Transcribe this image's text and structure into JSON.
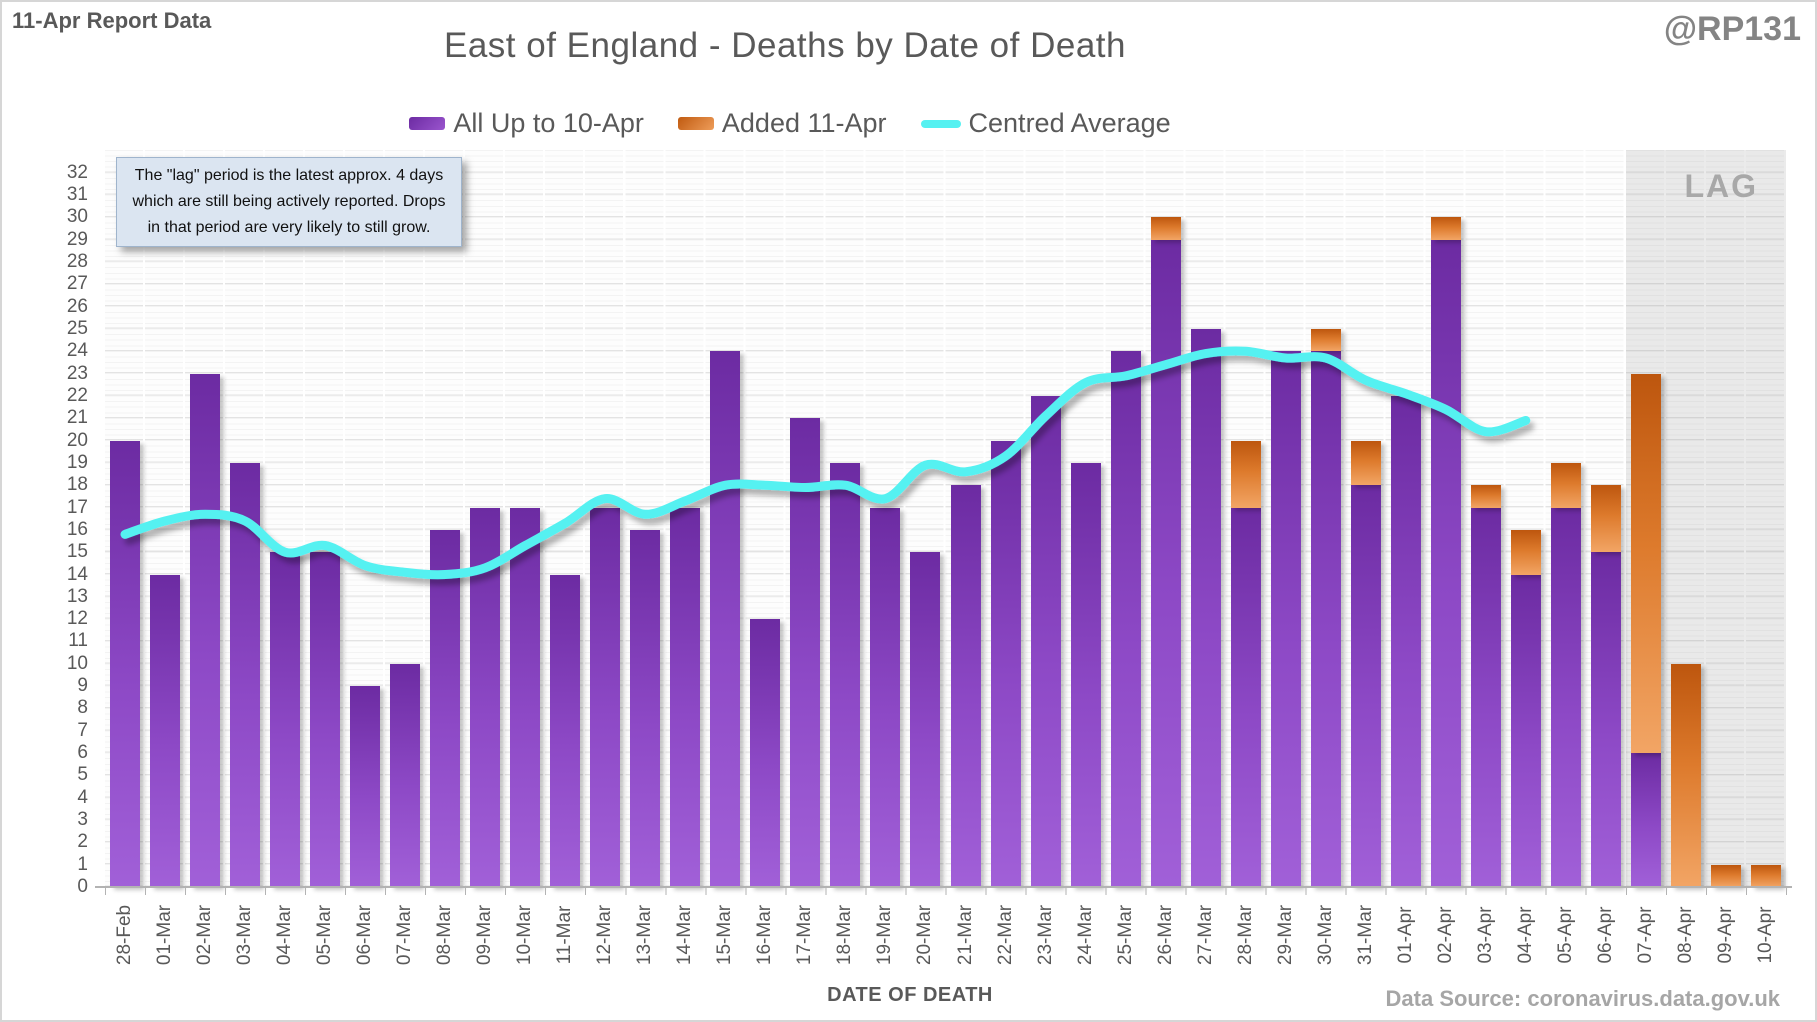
{
  "header": {
    "report_label": "11-Apr Report Data",
    "handle": "@RP131",
    "title": "East of England - Deaths by Date of Death"
  },
  "legend": [
    {
      "label": "All Up to 10-Apr",
      "swatch": "purple-bar",
      "color": "#7030a0"
    },
    {
      "label": "Added 11-Apr",
      "swatch": "orange-bar",
      "color": "#ed7d31"
    },
    {
      "label": "Centred Average",
      "swatch": "cyan-line",
      "color": "#55f1f1"
    }
  ],
  "annotation": {
    "lines": [
      "The \"lag\" period is the latest approx. 4 days",
      "which are still being actively reported. Drops",
      "in that period are very likely to still grow."
    ]
  },
  "lag_label": "LAG",
  "xaxis_title": "DATE OF DEATH",
  "source": "Data Source: coronavirus.data.gov.uk",
  "chart_data": {
    "type": "bar",
    "stacked": true,
    "grid": true,
    "legend_position": "top",
    "ylim": [
      0,
      32
    ],
    "yticks": [
      0,
      1,
      2,
      3,
      4,
      5,
      6,
      7,
      8,
      9,
      10,
      11,
      12,
      13,
      14,
      15,
      16,
      17,
      18,
      19,
      20,
      21,
      22,
      23,
      24,
      25,
      26,
      27,
      28,
      29,
      30,
      31,
      32
    ],
    "categories": [
      "28-Feb",
      "01-Mar",
      "02-Mar",
      "03-Mar",
      "04-Mar",
      "05-Mar",
      "06-Mar",
      "07-Mar",
      "08-Mar",
      "09-Mar",
      "10-Mar",
      "11-Mar",
      "12-Mar",
      "13-Mar",
      "14-Mar",
      "15-Mar",
      "16-Mar",
      "17-Mar",
      "18-Mar",
      "19-Mar",
      "20-Mar",
      "21-Mar",
      "22-Mar",
      "23-Mar",
      "24-Mar",
      "25-Mar",
      "26-Mar",
      "27-Mar",
      "28-Mar",
      "29-Mar",
      "30-Mar",
      "31-Mar",
      "01-Apr",
      "02-Apr",
      "03-Apr",
      "04-Apr",
      "05-Apr",
      "06-Apr",
      "07-Apr",
      "08-Apr",
      "09-Apr",
      "10-Apr"
    ],
    "series": [
      {
        "name": "All Up to 10-Apr",
        "color": "#7030a0",
        "values": [
          20,
          14,
          23,
          19,
          15,
          15,
          9,
          10,
          16,
          17,
          17,
          14,
          17,
          16,
          17,
          24,
          12,
          21,
          19,
          17,
          15,
          18,
          20,
          22,
          19,
          24,
          29,
          25,
          17,
          24,
          24,
          18,
          22,
          29,
          17,
          14,
          17,
          15,
          6,
          0,
          0,
          0
        ]
      },
      {
        "name": "Added 11-Apr",
        "color": "#ed7d31",
        "values": [
          0,
          0,
          0,
          0,
          0,
          0,
          0,
          0,
          0,
          0,
          0,
          0,
          0,
          0,
          0,
          0,
          0,
          0,
          0,
          0,
          0,
          0,
          0,
          0,
          0,
          0,
          1,
          0,
          3,
          0,
          1,
          2,
          0,
          1,
          1,
          2,
          2,
          3,
          17,
          10,
          1,
          1
        ]
      }
    ],
    "line_series": {
      "name": "Centred Average",
      "color": "#55f1f1",
      "values": [
        15.8,
        16.4,
        16.7,
        16.4,
        15.0,
        15.3,
        14.4,
        14.1,
        14.0,
        14.3,
        15.3,
        16.3,
        17.4,
        16.7,
        17.3,
        18.0,
        18.0,
        17.9,
        18.0,
        17.4,
        18.9,
        18.6,
        19.3,
        21.1,
        22.6,
        22.9,
        23.4,
        23.9,
        24.0,
        23.7,
        23.7,
        22.7,
        22.1,
        21.4,
        20.4,
        20.9
      ]
    },
    "lag_region": {
      "categories": [
        "07-Apr",
        "08-Apr",
        "09-Apr",
        "10-Apr"
      ],
      "label": "LAG"
    }
  }
}
